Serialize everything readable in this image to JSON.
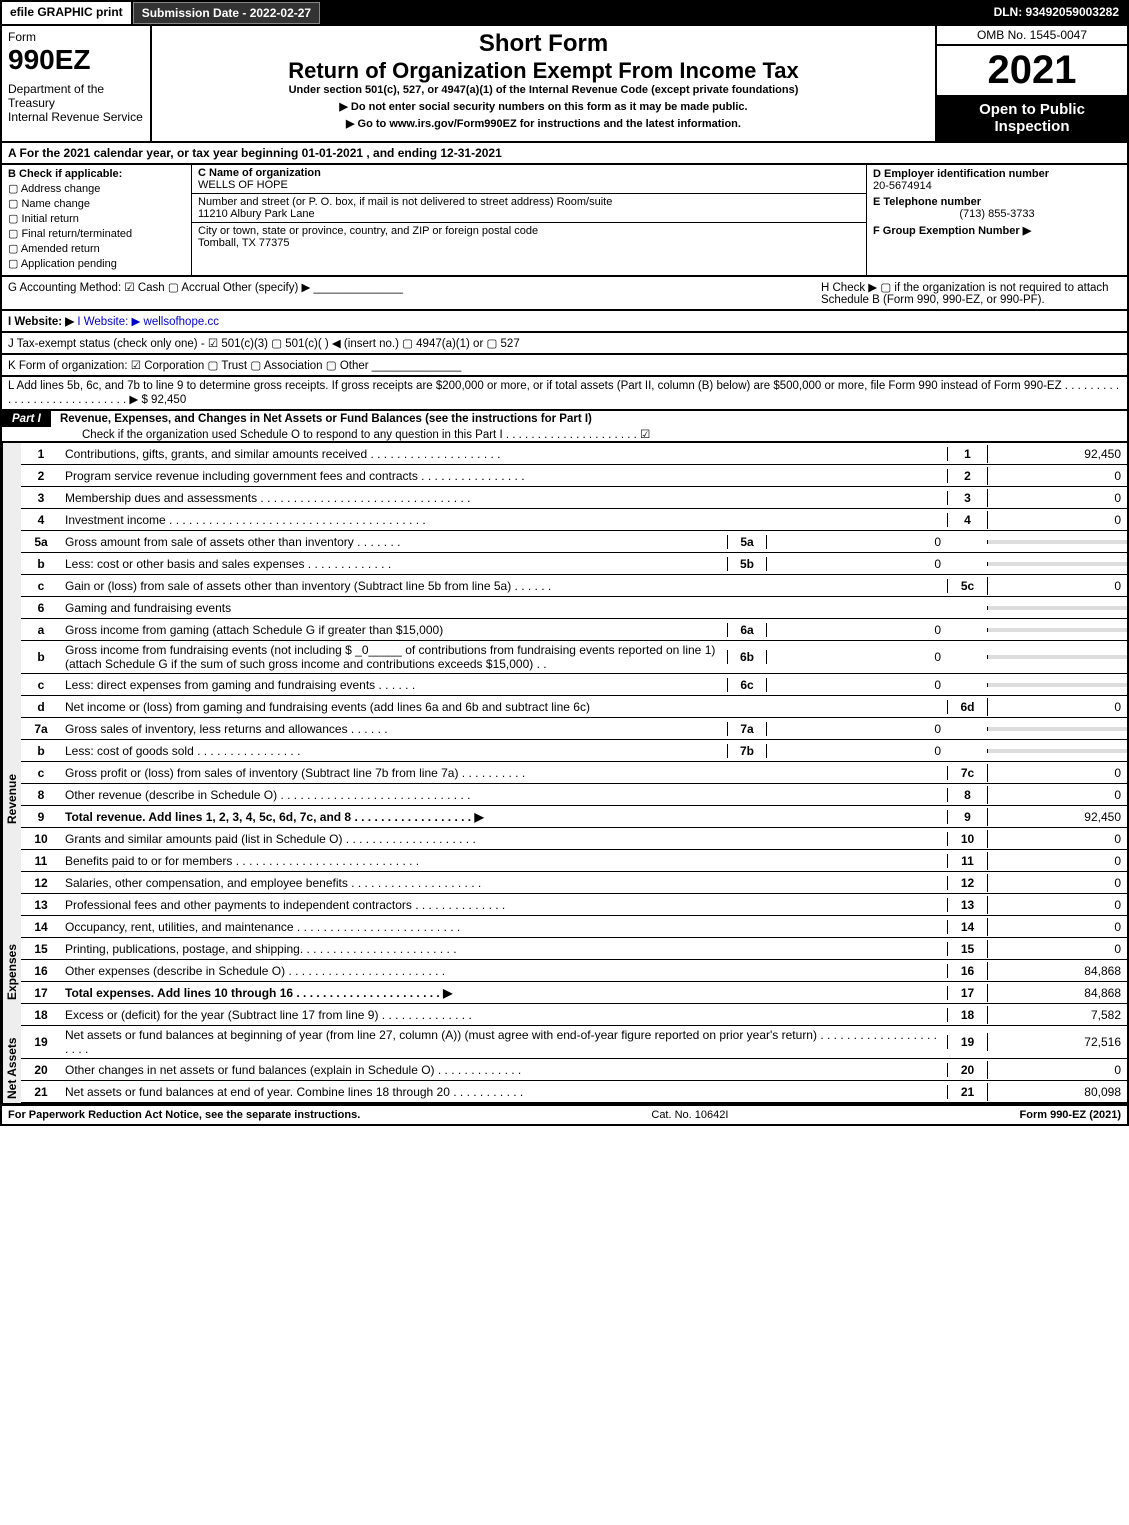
{
  "topbar": {
    "efile": "efile GRAPHIC print",
    "submission": "Submission Date - 2022-02-27",
    "dln": "DLN: 93492059003282"
  },
  "header": {
    "form_label": "Form",
    "form_number": "990EZ",
    "dept": "Department of the Treasury",
    "irs": "Internal Revenue Service",
    "short": "Short Form",
    "return": "Return of Organization Exempt From Income Tax",
    "under": "Under section 501(c), 527, or 4947(a)(1) of the Internal Revenue Code (except private foundations)",
    "donot": "▶ Do not enter social security numbers on this form as it may be made public.",
    "goto": "▶ Go to www.irs.gov/Form990EZ for instructions and the latest information.",
    "omb": "OMB No. 1545-0047",
    "year": "2021",
    "open": "Open to Public Inspection"
  },
  "rowA": "A  For the 2021 calendar year, or tax year beginning 01-01-2021 , and ending 12-31-2021",
  "colB": {
    "title": "B  Check if applicable:",
    "items": [
      "Address change",
      "Name change",
      "Initial return",
      "Final return/terminated",
      "Amended return",
      "Application pending"
    ]
  },
  "colC": {
    "name_label": "C Name of organization",
    "name": "WELLS OF HOPE",
    "street_label": "Number and street (or P. O. box, if mail is not delivered to street address)       Room/suite",
    "street": "11210 Albury Park Lane",
    "city_label": "City or town, state or province, country, and ZIP or foreign postal code",
    "city": "Tomball, TX  77375"
  },
  "colD": {
    "ein_label": "D Employer identification number",
    "ein": "20-5674914",
    "phone_label": "E Telephone number",
    "phone": "(713) 855-3733",
    "group_label": "F Group Exemption Number  ▶"
  },
  "rowG": "G Accounting Method:  ☑ Cash  ▢ Accrual  Other (specify) ▶ ______________",
  "rowH": "H  Check ▶  ▢  if the organization is not required to attach Schedule B (Form 990, 990-EZ, or 990-PF).",
  "rowI": "I Website: ▶ wellsofhope.cc",
  "rowJ": "J Tax-exempt status (check only one) - ☑ 501(c)(3) ▢ 501(c)(  ) ◀ (insert no.) ▢ 4947(a)(1) or ▢ 527",
  "rowK": "K Form of organization:  ☑ Corporation  ▢ Trust  ▢ Association  ▢ Other ______________",
  "rowL": "L Add lines 5b, 6c, and 7b to line 9 to determine gross receipts. If gross receipts are $200,000 or more, or if total assets (Part II, column (B) below) are $500,000 or more, file Form 990 instead of Form 990-EZ . . . . . . . . . . . . . . . . . . . . . . . . . . . . ▶ $ 92,450",
  "partI": {
    "title": "Part I",
    "heading": "Revenue, Expenses, and Changes in Net Assets or Fund Balances (see the instructions for Part I)",
    "checknote": "Check if the organization used Schedule O to respond to any question in this Part I . . . . . . . . . . . . . . . . . . . . .  ☑"
  },
  "revenue_label": "Revenue",
  "expenses_label": "Expenses",
  "netassets_label": "Net Assets",
  "lines": {
    "l1": {
      "n": "1",
      "d": "Contributions, gifts, grants, and similar amounts received . . . . . . . . . . . . . . . . . . . .",
      "rn": "1",
      "rv": "92,450"
    },
    "l2": {
      "n": "2",
      "d": "Program service revenue including government fees and contracts . . . . . . . . . . . . . . . .",
      "rn": "2",
      "rv": "0"
    },
    "l3": {
      "n": "3",
      "d": "Membership dues and assessments . . . . . . . . . . . . . . . . . . . . . . . . . . . . . . . .",
      "rn": "3",
      "rv": "0"
    },
    "l4": {
      "n": "4",
      "d": "Investment income . . . . . . . . . . . . . . . . . . . . . . . . . . . . . . . . . . . . . . .",
      "rn": "4",
      "rv": "0"
    },
    "l5a": {
      "n": "5a",
      "d": "Gross amount from sale of assets other than inventory . . . . . . .",
      "sn": "5a",
      "sv": "0"
    },
    "l5b": {
      "n": "b",
      "d": "Less: cost or other basis and sales expenses . . . . . . . . . . . . .",
      "sn": "5b",
      "sv": "0"
    },
    "l5c": {
      "n": "c",
      "d": "Gain or (loss) from sale of assets other than inventory (Subtract line 5b from line 5a) . . . . . .",
      "rn": "5c",
      "rv": "0"
    },
    "l6": {
      "n": "6",
      "d": "Gaming and fundraising events"
    },
    "l6a": {
      "n": "a",
      "d": "Gross income from gaming (attach Schedule G if greater than $15,000)",
      "sn": "6a",
      "sv": "0"
    },
    "l6b": {
      "n": "b",
      "d": "Gross income from fundraising events (not including $ _0_____ of contributions from fundraising events reported on line 1) (attach Schedule G if the sum of such gross income and contributions exceeds $15,000)   . .",
      "sn": "6b",
      "sv": "0"
    },
    "l6c": {
      "n": "c",
      "d": "Less: direct expenses from gaming and fundraising events . . . . . .",
      "sn": "6c",
      "sv": "0"
    },
    "l6d": {
      "n": "d",
      "d": "Net income or (loss) from gaming and fundraising events (add lines 6a and 6b and subtract line 6c)",
      "rn": "6d",
      "rv": "0"
    },
    "l7a": {
      "n": "7a",
      "d": "Gross sales of inventory, less returns and allowances . . . . . .",
      "sn": "7a",
      "sv": "0"
    },
    "l7b": {
      "n": "b",
      "d": "Less: cost of goods sold        . . . . . . . . . . . . . . . .",
      "sn": "7b",
      "sv": "0"
    },
    "l7c": {
      "n": "c",
      "d": "Gross profit or (loss) from sales of inventory (Subtract line 7b from line 7a) . . . . . . . . . .",
      "rn": "7c",
      "rv": "0"
    },
    "l8": {
      "n": "8",
      "d": "Other revenue (describe in Schedule O) . . . . . . . . . . . . . . . . . . . . . . . . . . . . .",
      "rn": "8",
      "rv": "0"
    },
    "l9": {
      "n": "9",
      "d": "Total revenue. Add lines 1, 2, 3, 4, 5c, 6d, 7c, and 8  . . . . . . . . . . . . . . . . . .  ▶",
      "rn": "9",
      "rv": "92,450",
      "bold": true
    },
    "l10": {
      "n": "10",
      "d": "Grants and similar amounts paid (list in Schedule O) . . . . . . . . . . . . . . . . . . . .",
      "rn": "10",
      "rv": "0"
    },
    "l11": {
      "n": "11",
      "d": "Benefits paid to or for members   . . . . . . . . . . . . . . . . . . . . . . . . . . . .",
      "rn": "11",
      "rv": "0"
    },
    "l12": {
      "n": "12",
      "d": "Salaries, other compensation, and employee benefits . . . . . . . . . . . . . . . . . . . .",
      "rn": "12",
      "rv": "0"
    },
    "l13": {
      "n": "13",
      "d": "Professional fees and other payments to independent contractors . . . . . . . . . . . . . .",
      "rn": "13",
      "rv": "0"
    },
    "l14": {
      "n": "14",
      "d": "Occupancy, rent, utilities, and maintenance . . . . . . . . . . . . . . . . . . . . . . . . .",
      "rn": "14",
      "rv": "0"
    },
    "l15": {
      "n": "15",
      "d": "Printing, publications, postage, and shipping. . . . . . . . . . . . . . . . . . . . . . . .",
      "rn": "15",
      "rv": "0"
    },
    "l16": {
      "n": "16",
      "d": "Other expenses (describe in Schedule O)   . . . . . . . . . . . . . . . . . . . . . . . .",
      "rn": "16",
      "rv": "84,868"
    },
    "l17": {
      "n": "17",
      "d": "Total expenses. Add lines 10 through 16   . . . . . . . . . . . . . . . . . . . . . .  ▶",
      "rn": "17",
      "rv": "84,868",
      "bold": true
    },
    "l18": {
      "n": "18",
      "d": "Excess or (deficit) for the year (Subtract line 17 from line 9)     . . . . . . . . . . . . . .",
      "rn": "18",
      "rv": "7,582"
    },
    "l19": {
      "n": "19",
      "d": "Net assets or fund balances at beginning of year (from line 27, column (A)) (must agree with end-of-year figure reported on prior year's return) . . . . . . . . . . . . . . . . . . . . . .",
      "rn": "19",
      "rv": "72,516"
    },
    "l20": {
      "n": "20",
      "d": "Other changes in net assets or fund balances (explain in Schedule O) . . . . . . . . . . . . .",
      "rn": "20",
      "rv": "0"
    },
    "l21": {
      "n": "21",
      "d": "Net assets or fund balances at end of year. Combine lines 18 through 20 . . . . . . . . . . .",
      "rn": "21",
      "rv": "80,098"
    }
  },
  "footer": {
    "pra": "For Paperwork Reduction Act Notice, see the separate instructions.",
    "cat": "Cat. No. 10642I",
    "formno": "Form 990-EZ (2021)"
  }
}
